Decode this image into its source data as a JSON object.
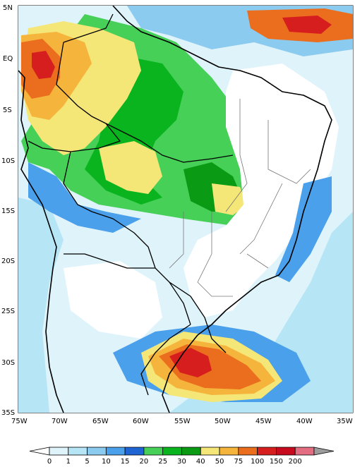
{
  "map": {
    "lat_labels": [
      "5N",
      "EQ",
      "5S",
      "10S",
      "15S",
      "20S",
      "25S",
      "30S",
      "35S"
    ],
    "lon_labels": [
      "75W",
      "70W",
      "65W",
      "60W",
      "55W",
      "50W",
      "45W",
      "40W",
      "35W"
    ]
  },
  "legend": {
    "thresholds": [
      "0",
      "1",
      "5",
      "10",
      "15",
      "20",
      "25",
      "30",
      "40",
      "50",
      "75",
      "100",
      "150",
      "200"
    ],
    "colors": [
      "#ffffff",
      "#dff3fb",
      "#b6e6f6",
      "#8ccbf0",
      "#4aa0ea",
      "#1e64d2",
      "#46d058",
      "#0ab41e",
      "#0a9a14",
      "#f5e678",
      "#f5b43c",
      "#eb6e1e",
      "#d71e1e",
      "#c80a1e",
      "#e36e82",
      "#9c9c9c"
    ]
  },
  "fields": [
    {
      "level": "1",
      "color": "#dff3fb"
    },
    {
      "level": "5",
      "color": "#b6e6f6"
    },
    {
      "level": "10",
      "color": "#8ccbf0"
    },
    {
      "level": "15",
      "color": "#4aa0ea"
    },
    {
      "level": "20",
      "color": "#1e64d2"
    },
    {
      "level": "25",
      "color": "#46d058"
    },
    {
      "level": "30",
      "color": "#0ab41e"
    },
    {
      "level": "40",
      "color": "#0a9a14"
    },
    {
      "level": "50",
      "color": "#f5e678"
    },
    {
      "level": "75",
      "color": "#f5b43c"
    },
    {
      "level": "100",
      "color": "#eb6e1e"
    },
    {
      "level": "150",
      "color": "#d71e1e"
    }
  ]
}
